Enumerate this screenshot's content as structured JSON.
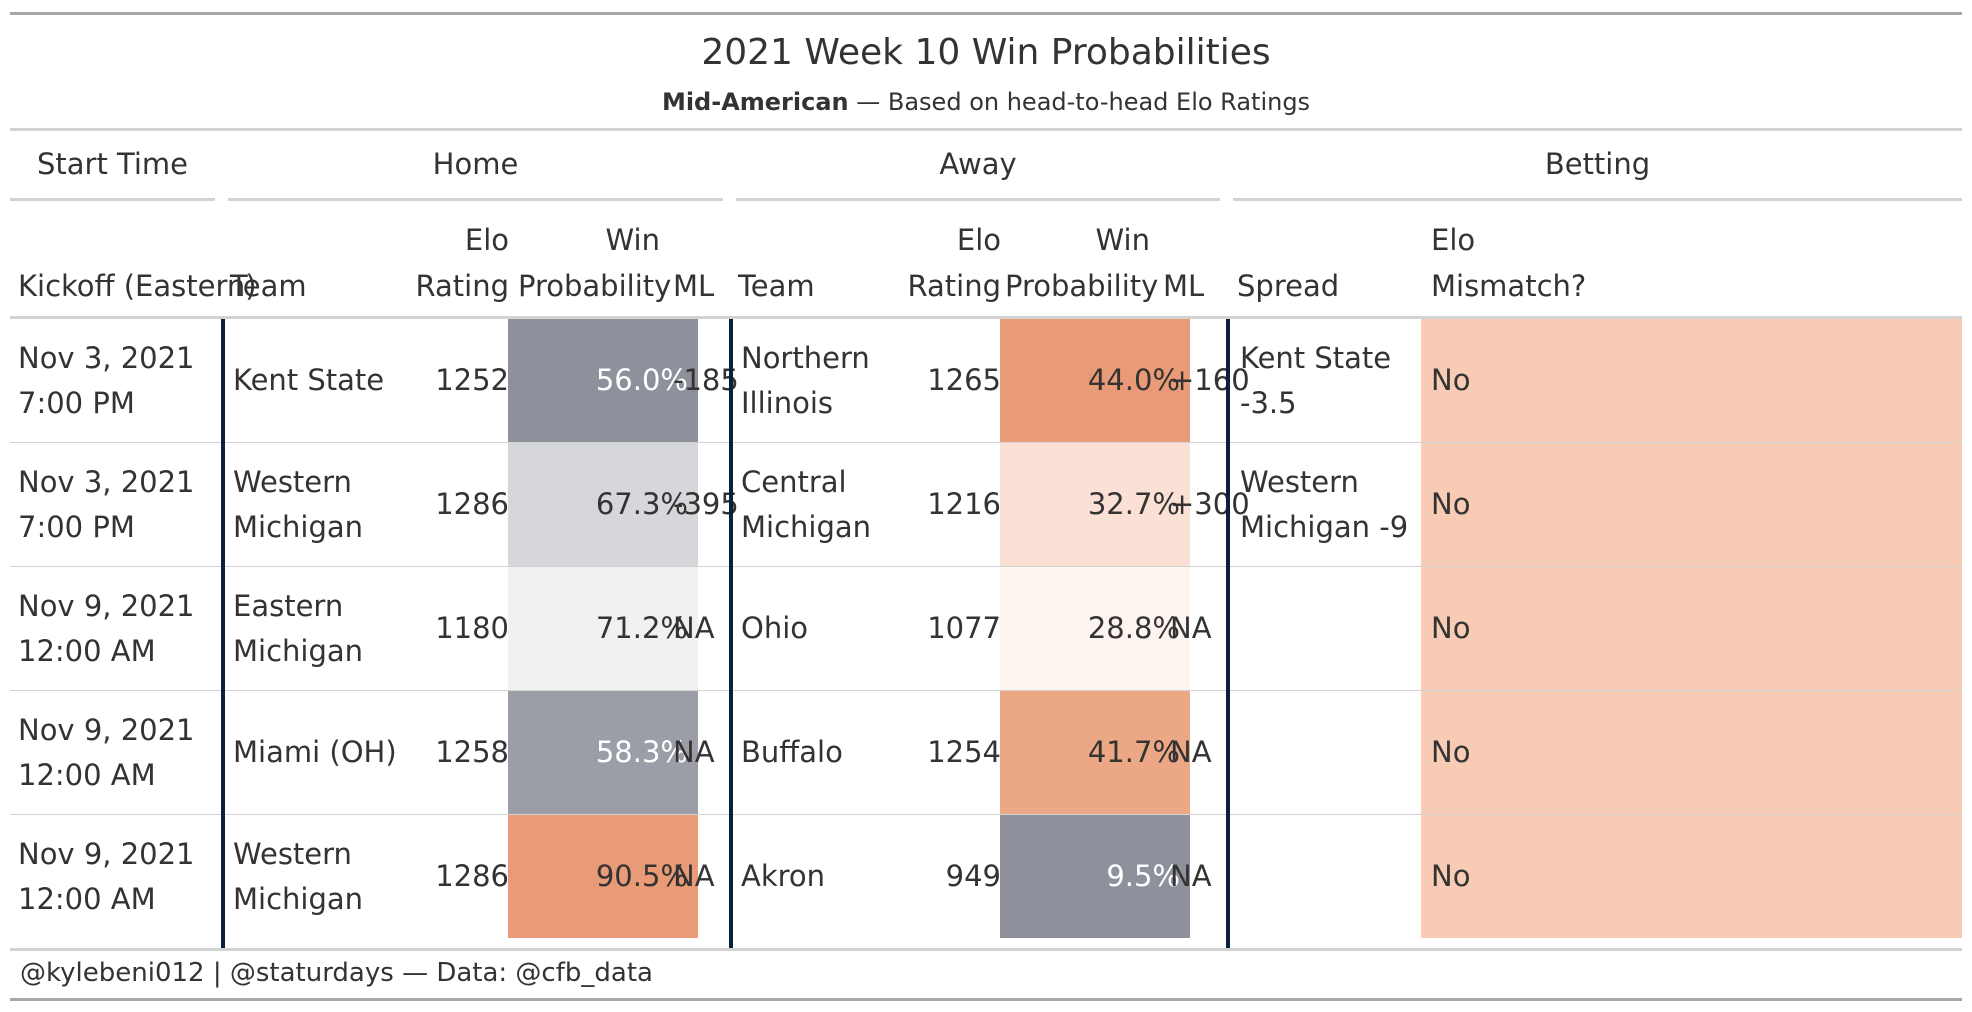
{
  "chart_data": {
    "type": "table",
    "title": "2021 Week 10 Win Probabilities",
    "subtitle_conference": "Mid-American",
    "subtitle_rest": " — Based on head-to-head Elo Ratings",
    "spanners": [
      "Start Time",
      "Home",
      "Away",
      "Betting"
    ],
    "columns": {
      "kickoff": "Kickoff (Eastern)",
      "home_team": "Team",
      "home_elo_1": "Elo",
      "home_elo_2": "Rating",
      "home_wp_1": "Win",
      "home_wp_2": "Probability",
      "home_ml": "ML",
      "away_team": "Team",
      "away_elo_1": "Elo",
      "away_elo_2": "Rating",
      "away_wp_1": "Win",
      "away_wp_2": "Probability",
      "away_ml": "ML",
      "spread": "Spread",
      "mismatch_1": "Elo",
      "mismatch_2": "Mismatch?"
    },
    "rows": [
      {
        "kickoff": "Nov 3, 2021 7:00 PM",
        "home_team": "Kent State",
        "home_elo": "1252",
        "home_wp": "56.0%",
        "home_wp_value": 56.0,
        "home_ml": "-185",
        "away_team": "Northern Illinois",
        "away_elo": "1265",
        "away_wp": "44.0%",
        "away_wp_value": 44.0,
        "away_ml": "+160",
        "spread": "Kent State -3.5",
        "mismatch": "No"
      },
      {
        "kickoff": "Nov 3, 2021 7:00 PM",
        "home_team": "Western Michigan",
        "home_elo": "1286",
        "home_wp": "67.3%",
        "home_wp_value": 67.3,
        "home_ml": "-395",
        "away_team": "Central Michigan",
        "away_elo": "1216",
        "away_wp": "32.7%",
        "away_wp_value": 32.7,
        "away_ml": "+300",
        "spread": "Western Michigan -9",
        "mismatch": "No"
      },
      {
        "kickoff": "Nov 9, 2021 12:00 AM",
        "home_team": "Eastern Michigan",
        "home_elo": "1180",
        "home_wp": "71.2%",
        "home_wp_value": 71.2,
        "home_ml": "NA",
        "away_team": "Ohio",
        "away_elo": "1077",
        "away_wp": "28.8%",
        "away_wp_value": 28.8,
        "away_ml": "NA",
        "spread": "",
        "mismatch": "No"
      },
      {
        "kickoff": "Nov 9, 2021 12:00 AM",
        "home_team": "Miami (OH)",
        "home_elo": "1258",
        "home_wp": "58.3%",
        "home_wp_value": 58.3,
        "home_ml": "NA",
        "away_team": "Buffalo",
        "away_elo": "1254",
        "away_wp": "41.7%",
        "away_wp_value": 41.7,
        "away_ml": "NA",
        "spread": "",
        "mismatch": "No"
      },
      {
        "kickoff": "Nov 9, 2021 12:00 AM",
        "home_team": "Western Michigan",
        "home_elo": "1286",
        "home_wp": "90.5%",
        "home_wp_value": 90.5,
        "home_ml": "NA",
        "away_team": "Akron",
        "away_elo": "949",
        "away_wp": "9.5%",
        "away_wp_value": 9.5,
        "away_ml": "NA",
        "spread": "",
        "mismatch": "No"
      }
    ],
    "colors": {
      "row_0_home_wp": "#8e919b",
      "row_0_away_wp": "#e99a76",
      "row_1_home_wp": "#d6d7da",
      "row_1_away_wp": "#fbe0d5",
      "row_2_home_wp": "#f1f1f2",
      "row_2_away_wp": "#fdf3ef",
      "row_3_home_wp": "#9b9ea7",
      "row_3_away_wp": "#eca785",
      "row_4_home_wp": "#e99a76",
      "row_4_away_wp": "#8e919b",
      "mismatch_fill": "#f8cbb5",
      "dark_text": "#333333",
      "light_text": "#ffffff",
      "divider": "#0b1f3f"
    },
    "footnote": "@kylebeni012 | @staturdays — Data: @cfb_data"
  }
}
